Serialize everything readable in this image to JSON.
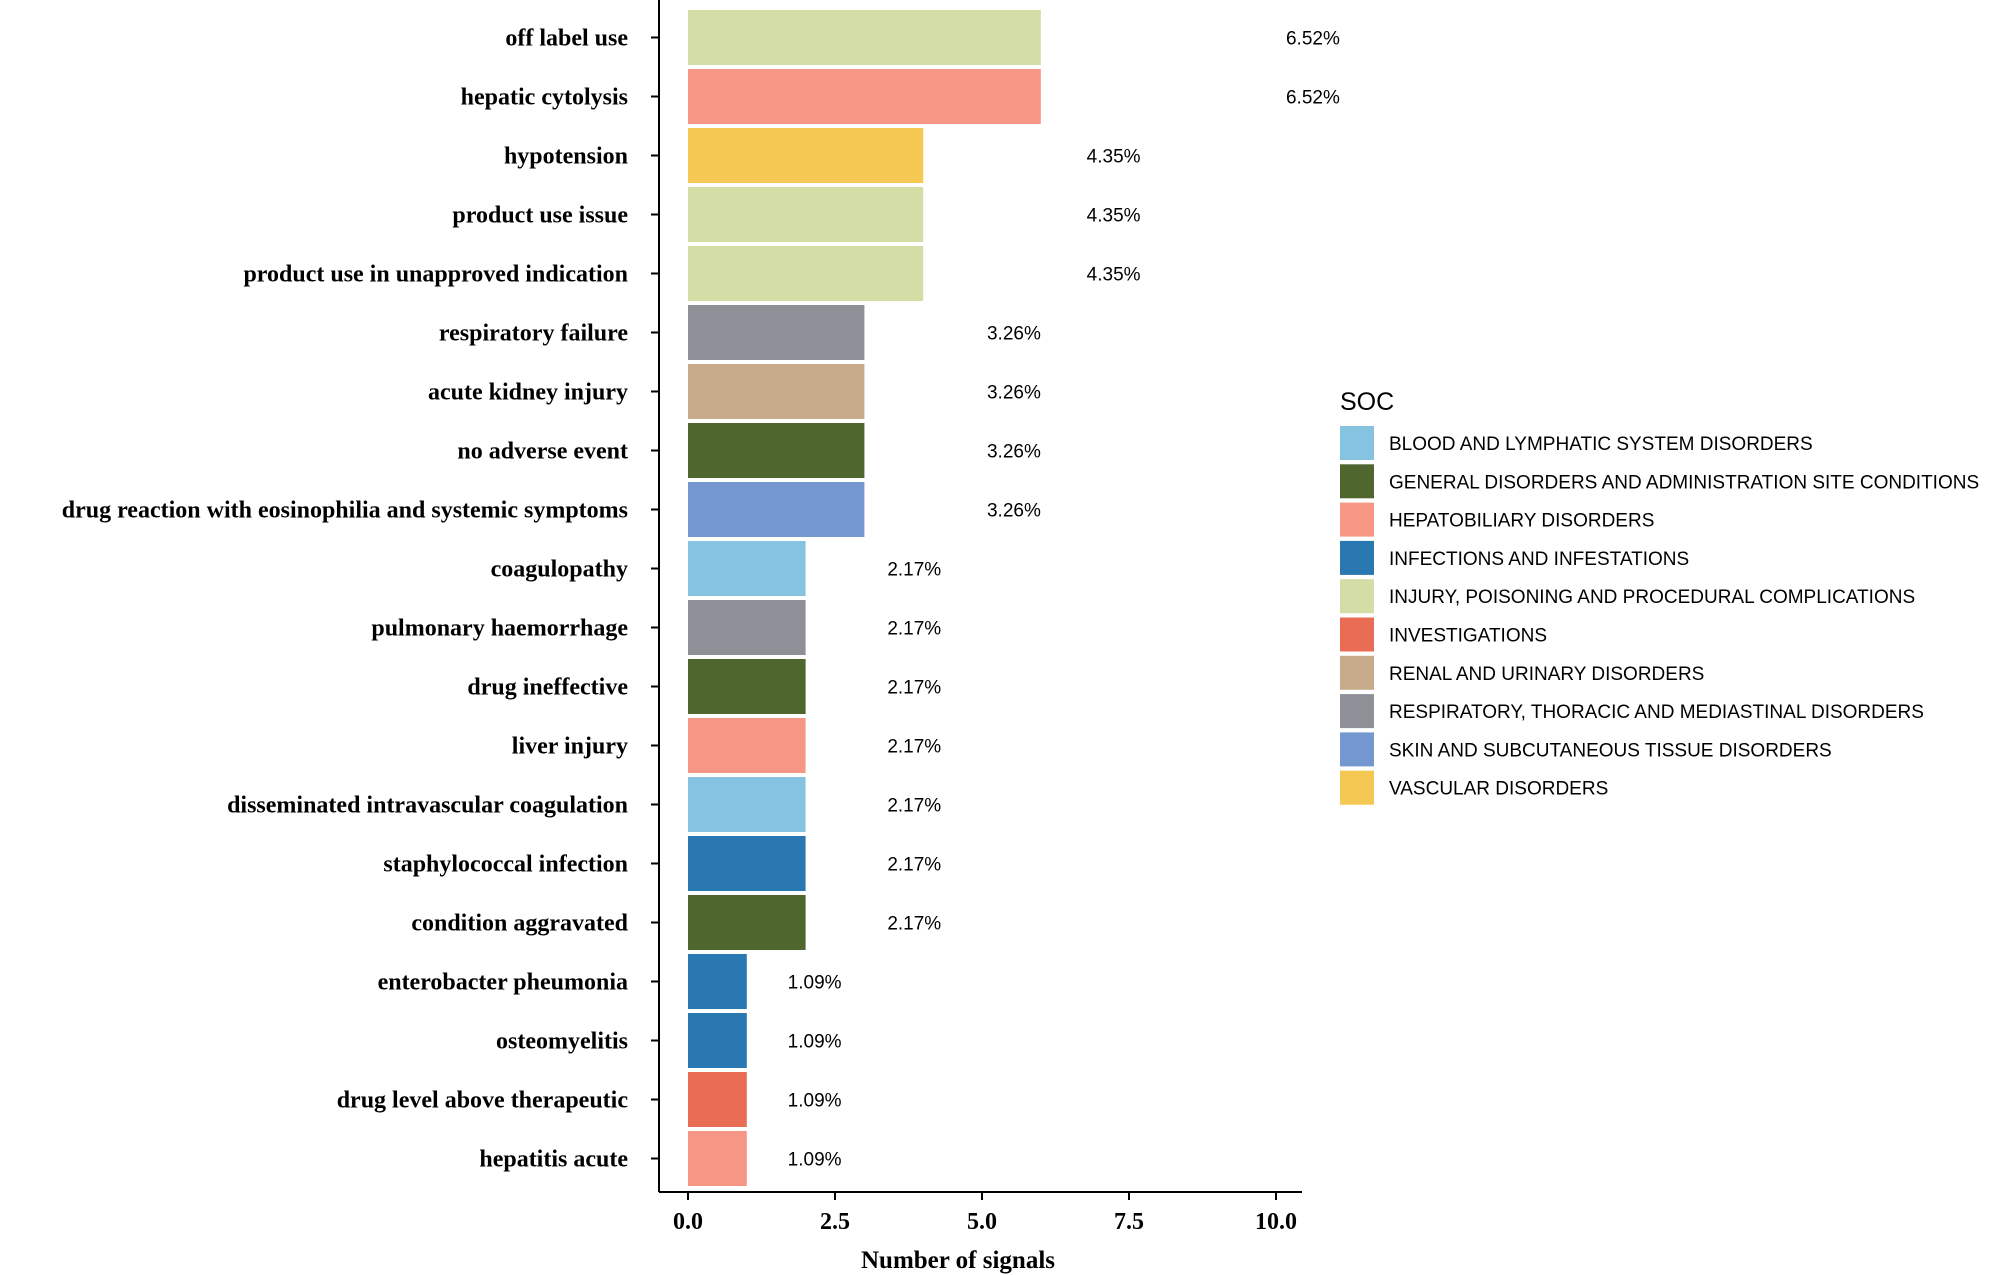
{
  "chart_data": {
    "type": "bar",
    "orientation": "horizontal",
    "title": "",
    "xlabel": "Number of signals",
    "ylabel": "",
    "xlim": [
      0,
      10
    ],
    "xticks": [
      0,
      2.5,
      5,
      7.5,
      10
    ],
    "xtick_labels": [
      "0.0",
      "2.5",
      "5.0",
      "7.5",
      "10.0"
    ],
    "grid": false,
    "legend": {
      "title": "SOC",
      "position": "right",
      "entries": [
        {
          "label": "BLOOD AND LYMPHATIC SYSTEM DISORDERS",
          "color": "#85C3E1"
        },
        {
          "label": "GENERAL DISORDERS AND ADMINISTRATION SITE CONDITIONS",
          "color": "#50662F"
        },
        {
          "label": "HEPATOBILIARY DISORDERS",
          "color": "#F69684"
        },
        {
          "label": "INFECTIONS AND INFESTATIONS",
          "color": "#2A78B1"
        },
        {
          "label": "INJURY, POISONING AND PROCEDURAL COMPLICATIONS",
          "color": "#D3DDA5"
        },
        {
          "label": "INVESTIGATIONS",
          "color": "#E96C55"
        },
        {
          "label": "RENAL AND URINARY DISORDERS",
          "color": "#C8AB8B"
        },
        {
          "label": "RESPIRATORY, THORACIC AND MEDIASTINAL DISORDERS",
          "color": "#8E8F97"
        },
        {
          "label": "SKIN AND SUBCUTANEOUS TISSUE DISORDERS",
          "color": "#7597D0"
        },
        {
          "label": "VASCULAR DISORDERS",
          "color": "#F4C853"
        }
      ]
    },
    "bars": [
      {
        "category": "off label use",
        "value": 6,
        "label": "6.52%",
        "soc": "INJURY, POISONING AND PROCEDURAL COMPLICATIONS"
      },
      {
        "category": "hepatic cytolysis",
        "value": 6,
        "label": "6.52%",
        "soc": "HEPATOBILIARY DISORDERS"
      },
      {
        "category": "hypotension",
        "value": 4,
        "label": "4.35%",
        "soc": "VASCULAR DISORDERS"
      },
      {
        "category": "product use issue",
        "value": 4,
        "label": "4.35%",
        "soc": "INJURY, POISONING AND PROCEDURAL COMPLICATIONS"
      },
      {
        "category": "product use in unapproved indication",
        "value": 4,
        "label": "4.35%",
        "soc": "INJURY, POISONING AND PROCEDURAL COMPLICATIONS"
      },
      {
        "category": "respiratory failure",
        "value": 3,
        "label": "3.26%",
        "soc": "RESPIRATORY, THORACIC AND MEDIASTINAL DISORDERS"
      },
      {
        "category": "acute kidney injury",
        "value": 3,
        "label": "3.26%",
        "soc": "RENAL AND URINARY DISORDERS"
      },
      {
        "category": "no adverse event",
        "value": 3,
        "label": "3.26%",
        "soc": "GENERAL DISORDERS AND ADMINISTRATION SITE CONDITIONS"
      },
      {
        "category": "drug reaction with eosinophilia and systemic symptoms",
        "value": 3,
        "label": "3.26%",
        "soc": "SKIN AND SUBCUTANEOUS TISSUE DISORDERS"
      },
      {
        "category": "coagulopathy",
        "value": 2,
        "label": "2.17%",
        "soc": "BLOOD AND LYMPHATIC SYSTEM DISORDERS"
      },
      {
        "category": "pulmonary haemorrhage",
        "value": 2,
        "label": "2.17%",
        "soc": "RESPIRATORY, THORACIC AND MEDIASTINAL DISORDERS"
      },
      {
        "category": "drug ineffective",
        "value": 2,
        "label": "2.17%",
        "soc": "GENERAL DISORDERS AND ADMINISTRATION SITE CONDITIONS"
      },
      {
        "category": "liver injury",
        "value": 2,
        "label": "2.17%",
        "soc": "HEPATOBILIARY DISORDERS"
      },
      {
        "category": "disseminated intravascular coagulation",
        "value": 2,
        "label": "2.17%",
        "soc": "BLOOD AND LYMPHATIC SYSTEM DISORDERS"
      },
      {
        "category": "staphylococcal infection",
        "value": 2,
        "label": "2.17%",
        "soc": "INFECTIONS AND INFESTATIONS"
      },
      {
        "category": "condition aggravated",
        "value": 2,
        "label": "2.17%",
        "soc": "GENERAL DISORDERS AND ADMINISTRATION SITE CONDITIONS"
      },
      {
        "category": "enterobacter pheumonia",
        "value": 1,
        "label": "1.09%",
        "soc": "INFECTIONS AND INFESTATIONS"
      },
      {
        "category": "osteomyelitis",
        "value": 1,
        "label": "1.09%",
        "soc": "INFECTIONS AND INFESTATIONS"
      },
      {
        "category": "drug level above therapeutic",
        "value": 1,
        "label": "1.09%",
        "soc": "INVESTIGATIONS"
      },
      {
        "category": "hepatitis acute",
        "value": 1,
        "label": "1.09%",
        "soc": "HEPATOBILIARY DISORDERS"
      }
    ]
  }
}
